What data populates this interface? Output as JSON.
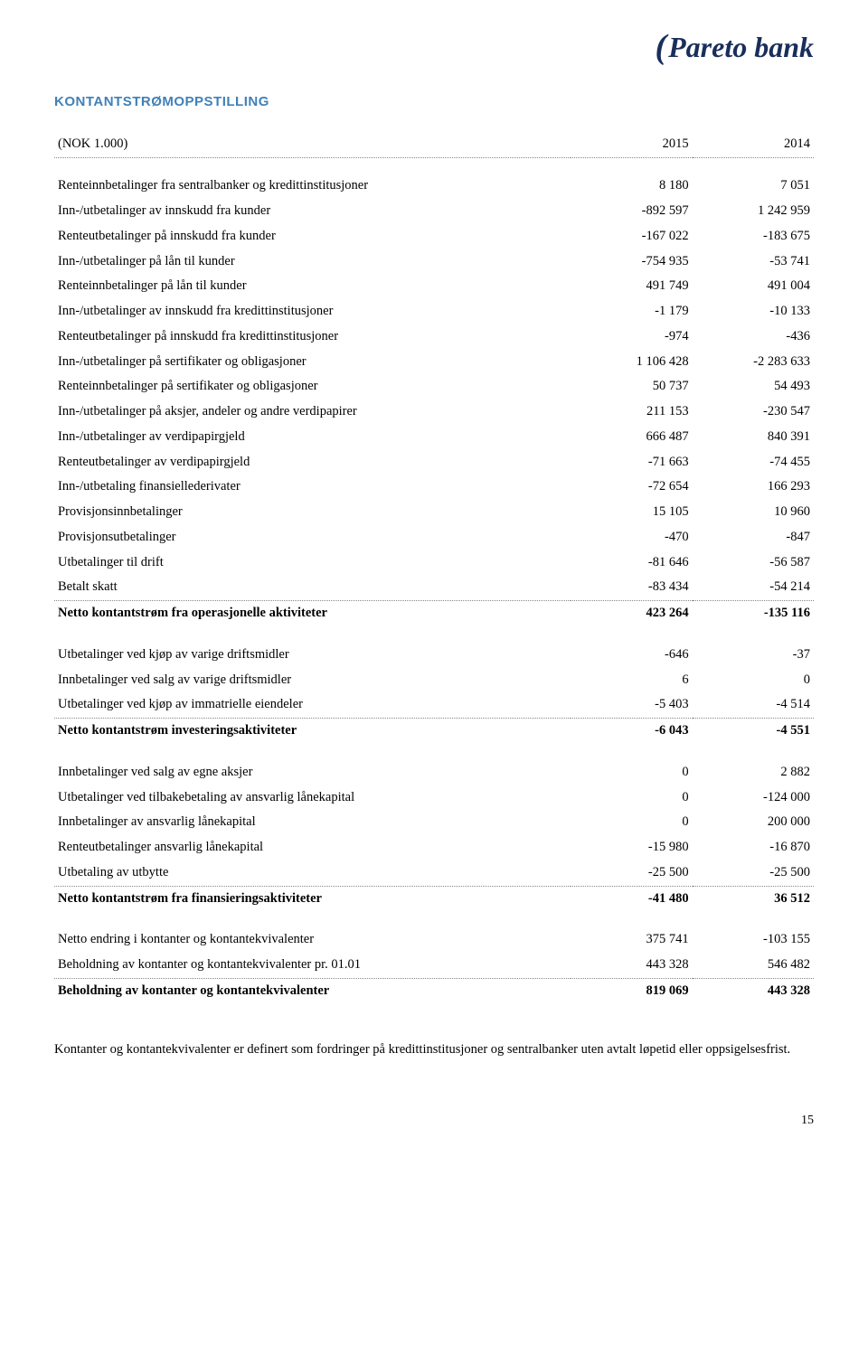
{
  "logo": {
    "brand": "Pareto bank"
  },
  "title": "KONTANTSTRØMOPPSTILLING",
  "header": {
    "label": "(NOK 1.000)",
    "col1": "2015",
    "col2": "2014"
  },
  "rows": [
    {
      "type": "spacer"
    },
    {
      "label": "Renteinnbetalinger fra sentralbanker og kredittinstitusjoner",
      "v1": "8 180",
      "v2": "7 051"
    },
    {
      "label": "Inn-/utbetalinger av innskudd fra kunder",
      "v1": "-892 597",
      "v2": "1 242 959"
    },
    {
      "label": "Renteutbetalinger på innskudd fra kunder",
      "v1": "-167 022",
      "v2": "-183 675"
    },
    {
      "label": "Inn-/utbetalinger på lån til kunder",
      "v1": "-754 935",
      "v2": "-53 741"
    },
    {
      "label": "Renteinnbetalinger på lån til kunder",
      "v1": "491 749",
      "v2": "491 004"
    },
    {
      "label": "Inn-/utbetalinger av innskudd fra kredittinstitusjoner",
      "v1": "-1 179",
      "v2": "-10 133"
    },
    {
      "label": "Renteutbetalinger på innskudd fra kredittinstitusjoner",
      "v1": "-974",
      "v2": "-436"
    },
    {
      "label": "Inn-/utbetalinger på sertifikater og obligasjoner",
      "v1": "1 106 428",
      "v2": "-2 283 633"
    },
    {
      "label": "Renteinnbetalinger på sertifikater og obligasjoner",
      "v1": "50 737",
      "v2": "54 493"
    },
    {
      "label": "Inn-/utbetalinger på aksjer, andeler og andre verdipapirer",
      "v1": "211 153",
      "v2": "-230 547"
    },
    {
      "label": "Inn-/utbetalinger av verdipapirgjeld",
      "v1": "666 487",
      "v2": "840 391"
    },
    {
      "label": "Renteutbetalinger av verdipapirgjeld",
      "v1": "-71 663",
      "v2": "-74 455"
    },
    {
      "label": "Inn-/utbetaling finansiellederivater",
      "v1": "-72 654",
      "v2": "166 293"
    },
    {
      "label": "Provisjonsinnbetalinger",
      "v1": "15 105",
      "v2": "10 960"
    },
    {
      "label": "Provisjonsutbetalinger",
      "v1": "-470",
      "v2": "-847"
    },
    {
      "label": "Utbetalinger til drift",
      "v1": "-81 646",
      "v2": "-56 587"
    },
    {
      "label": "Betalt skatt",
      "v1": "-83 434",
      "v2": "-54 214",
      "dotted": true
    },
    {
      "label": "Netto kontantstrøm fra operasjonelle aktiviteter",
      "v1": "423 264",
      "v2": "-135 116",
      "bold": true
    },
    {
      "type": "spacer"
    },
    {
      "label": "Utbetalinger ved kjøp av varige driftsmidler",
      "v1": "-646",
      "v2": "-37"
    },
    {
      "label": "Innbetalinger ved salg av varige driftsmidler",
      "v1": "6",
      "v2": "0"
    },
    {
      "label": "Utbetalinger ved kjøp av immatrielle eiendeler",
      "v1": "-5 403",
      "v2": "-4 514",
      "dotted": true
    },
    {
      "label": "Netto kontantstrøm investeringsaktiviteter",
      "v1": "-6 043",
      "v2": "-4 551",
      "bold": true
    },
    {
      "type": "spacer"
    },
    {
      "label": "Innbetalinger ved salg av egne aksjer",
      "v1": "0",
      "v2": "2 882"
    },
    {
      "label": "Utbetalinger ved tilbakebetaling av ansvarlig lånekapital",
      "v1": "0",
      "v2": "-124 000"
    },
    {
      "label": "Innbetalinger av ansvarlig lånekapital",
      "v1": "0",
      "v2": "200 000"
    },
    {
      "label": "Renteutbetalinger ansvarlig lånekapital",
      "v1": "-15 980",
      "v2": "-16 870"
    },
    {
      "label": "Utbetaling av utbytte",
      "v1": "-25 500",
      "v2": "-25 500",
      "dotted": true
    },
    {
      "label": "Netto kontantstrøm fra finansieringsaktiviteter",
      "v1": "-41 480",
      "v2": "36 512",
      "bold": true
    },
    {
      "type": "spacer"
    },
    {
      "label": "Netto endring i kontanter og kontantekvivalenter",
      "v1": "375 741",
      "v2": "-103 155"
    },
    {
      "label": "Beholdning av kontanter og kontantekvivalenter pr. 01.01",
      "v1": "443 328",
      "v2": "546 482",
      "dotted": true
    },
    {
      "label": "Beholdning av kontanter og kontantekvivalenter",
      "v1": "819 069",
      "v2": "443 328",
      "bold": true
    }
  ],
  "footnote": "Kontanter og kontantekvivalenter er definert som fordringer på kredittinstitusjoner og sentralbanker uten avtalt løpetid eller oppsigelsesfrist.",
  "pageNumber": "15"
}
